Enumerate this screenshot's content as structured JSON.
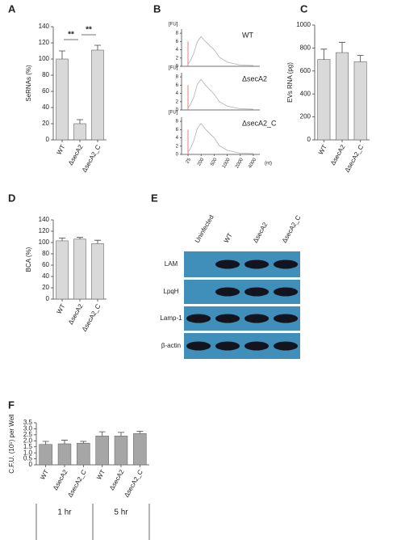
{
  "chart_data": [
    {
      "type": "bar",
      "panel": "A",
      "ylabel": "SeRNAs (%)",
      "categories": [
        "WT",
        "ΔsecA2",
        "ΔsecA2_C"
      ],
      "values": [
        100,
        20,
        111
      ],
      "errors": [
        10,
        5,
        6
      ],
      "color": "#d9d9d9",
      "ylim": [
        0,
        140
      ],
      "yticks": [
        0,
        20,
        40,
        60,
        80,
        100,
        120,
        140
      ],
      "annotations": [
        "**",
        "**"
      ]
    },
    {
      "type": "electropherogram",
      "panel": "B",
      "ylabel": "[FU]",
      "xlabel": "(nt)",
      "xlim": [
        25,
        4000
      ],
      "xticks": [
        25,
        200,
        500,
        1000,
        2000,
        4000
      ],
      "ylim": [
        0,
        9
      ],
      "yticks": [
        0,
        2,
        4,
        6,
        8
      ],
      "x": [
        25,
        60,
        100,
        150,
        200,
        300,
        500,
        700,
        1000,
        2000,
        4000
      ],
      "series": [
        {
          "name": "WT",
          "color": "#b0b0b0",
          "values": [
            0.5,
            1.5,
            3,
            6,
            7.2,
            6,
            4,
            2.2,
            1,
            0.3,
            0.2
          ]
        },
        {
          "name": "ΔsecA2",
          "color": "#b0b0b0",
          "values": [
            0.5,
            1.4,
            3,
            6.2,
            7.4,
            6,
            3.8,
            2,
            0.9,
            0.3,
            0.2
          ]
        },
        {
          "name": "ΔsecA2_C",
          "color": "#b0b0b0",
          "values": [
            0.5,
            1.5,
            3.2,
            6.3,
            7.5,
            6.1,
            4,
            2.1,
            1,
            0.3,
            0.2
          ]
        }
      ]
    },
    {
      "type": "bar",
      "panel": "C",
      "ylabel": "EVs RNA (pg)",
      "categories": [
        "WT",
        "ΔsecA2",
        "ΔsecA2_C"
      ],
      "values": [
        700,
        760,
        680
      ],
      "errors": [
        90,
        90,
        55
      ],
      "color": "#d9d9d9",
      "ylim": [
        0,
        1000
      ],
      "yticks": [
        0,
        200,
        400,
        600,
        800,
        1000
      ]
    },
    {
      "type": "bar",
      "panel": "D",
      "ylabel": "BCA (%)",
      "categories": [
        "WT",
        "ΔsecA2",
        "ΔsecA2_C"
      ],
      "values": [
        103,
        106,
        98
      ],
      "errors": [
        5,
        3,
        6
      ],
      "color": "#d9d9d9",
      "ylim": [
        0,
        140
      ],
      "yticks": [
        0,
        20,
        40,
        60,
        80,
        100,
        120,
        140
      ]
    },
    {
      "type": "bar",
      "panel": "F",
      "ylabel": "C.F.U. (10⁵) per Well",
      "categories": [
        "WT",
        "ΔsecA2",
        "ΔsecA2_C",
        "WT",
        "ΔsecA2",
        "ΔsecA2_C"
      ],
      "values": [
        1.7,
        1.75,
        1.8,
        2.4,
        2.4,
        2.6
      ],
      "errors": [
        0.25,
        0.3,
        0.15,
        0.35,
        0.3,
        0.2
      ],
      "color": "#a6a6a6",
      "ylim": [
        0,
        3.5
      ],
      "yticks": [
        0,
        0.5,
        {
          "value": 1,
          "label": "1.0"
        },
        1.5,
        {
          "value": 2,
          "label": "2.0"
        },
        2.5,
        {
          "value": 3,
          "label": "3.0"
        },
        3.5
      ],
      "groups": [
        "1 hr",
        "5 hr"
      ]
    }
  ],
  "blot": {
    "panel": "E",
    "columns": [
      "Uninfected",
      "WT",
      "ΔsecA2",
      "ΔsecA2_C"
    ],
    "rows": [
      "LAM",
      "LpqH",
      "Lamp-1",
      "β-actin"
    ],
    "bands": [
      [
        false,
        true,
        true,
        true
      ],
      [
        false,
        true,
        true,
        true
      ],
      [
        true,
        true,
        true,
        true
      ],
      [
        true,
        true,
        true,
        true
      ]
    ]
  }
}
